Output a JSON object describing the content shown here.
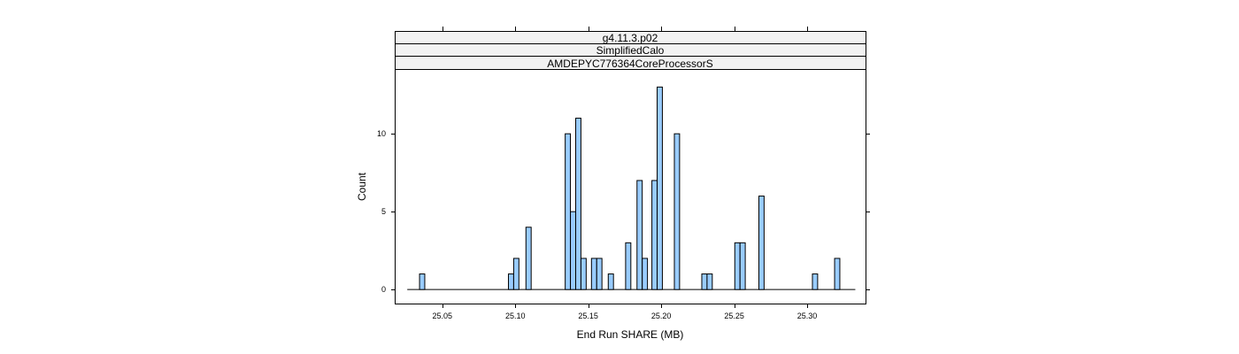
{
  "chart_data": {
    "type": "bar",
    "strips": [
      "g4.11.3.p02",
      "SimplifiedCalo",
      "AMDEPYC776364CoreProcessorS"
    ],
    "xlabel": "End Run SHARE (MB)",
    "ylabel": "Count",
    "xlim": [
      25.018,
      25.34
    ],
    "ylim": [
      -0.9,
      14.1
    ],
    "xticks": [
      25.05,
      25.1,
      25.15,
      25.2,
      25.25,
      25.3
    ],
    "xtick_labels": [
      "25.05",
      "25.10",
      "25.15",
      "25.20",
      "25.25",
      "25.30"
    ],
    "yticks": [
      0,
      5,
      10
    ],
    "ytick_labels": [
      "0",
      "5",
      "10"
    ],
    "baseline_range": [
      25.026,
      25.333
    ],
    "bar_width": 0.00358,
    "bars": [
      {
        "x": 25.0362,
        "count": 1
      },
      {
        "x": 25.0971,
        "count": 1
      },
      {
        "x": 25.1007,
        "count": 2
      },
      {
        "x": 25.1091,
        "count": 4
      },
      {
        "x": 25.136,
        "count": 10
      },
      {
        "x": 25.1396,
        "count": 5
      },
      {
        "x": 25.1432,
        "count": 11
      },
      {
        "x": 25.1468,
        "count": 2
      },
      {
        "x": 25.154,
        "count": 2
      },
      {
        "x": 25.1576,
        "count": 2
      },
      {
        "x": 25.1655,
        "count": 1
      },
      {
        "x": 25.1774,
        "count": 3
      },
      {
        "x": 25.1852,
        "count": 7
      },
      {
        "x": 25.1888,
        "count": 2
      },
      {
        "x": 25.1954,
        "count": 7
      },
      {
        "x": 25.199,
        "count": 13
      },
      {
        "x": 25.2108,
        "count": 10
      },
      {
        "x": 25.2296,
        "count": 1
      },
      {
        "x": 25.2332,
        "count": 1
      },
      {
        "x": 25.2522,
        "count": 3
      },
      {
        "x": 25.2558,
        "count": 3
      },
      {
        "x": 25.2687,
        "count": 6
      },
      {
        "x": 25.3054,
        "count": 1
      },
      {
        "x": 25.3206,
        "count": 2
      }
    ],
    "grid": false,
    "bar_color": "#99ccff",
    "strip_color": "#f2f2f2"
  }
}
